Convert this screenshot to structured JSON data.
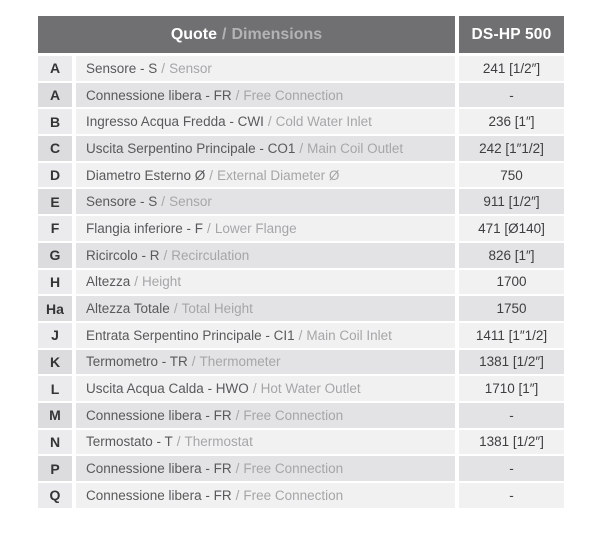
{
  "header": {
    "title_strong": "Quote",
    "title_dim": "Dimensions",
    "model": "DS-HP 500"
  },
  "separator": "/",
  "colors": {
    "header_bg": "#707072",
    "row_light": "#f1f1f2",
    "row_dark": "#e3e3e5",
    "text_dark": "#59595b",
    "text_dim": "#a6a6a8"
  },
  "rows": [
    {
      "letter": "A",
      "label_it": "Sensore - S",
      "label_en": "Sensor",
      "value": "241 [1/2″]"
    },
    {
      "letter": "A",
      "label_it": "Connessione libera - FR",
      "label_en": "Free Connection",
      "value": "-"
    },
    {
      "letter": "B",
      "label_it": "Ingresso Acqua Fredda - CWI",
      "label_en": "Cold Water Inlet",
      "value": "236 [1″]"
    },
    {
      "letter": "C",
      "label_it": "Uscita Serpentino Principale - CO1",
      "label_en": "Main Coil Outlet",
      "value": "242 [1″1/2]"
    },
    {
      "letter": "D",
      "label_it": "Diametro Esterno Ø",
      "label_en": "External Diameter Ø",
      "value": "750"
    },
    {
      "letter": "E",
      "label_it": "Sensore - S",
      "label_en": "Sensor",
      "value": "911 [1/2″]"
    },
    {
      "letter": "F",
      "label_it": "Flangia inferiore - F",
      "label_en": "Lower Flange",
      "value": "471 [Ø140]"
    },
    {
      "letter": "G",
      "label_it": "Ricircolo - R",
      "label_en": "Recirculation",
      "value": "826 [1″]"
    },
    {
      "letter": "H",
      "label_it": "Altezza",
      "label_en": "Height",
      "value": "1700"
    },
    {
      "letter": "Ha",
      "label_it": "Altezza Totale",
      "label_en": "Total Height",
      "value": "1750"
    },
    {
      "letter": "J",
      "label_it": "Entrata Serpentino Principale - CI1",
      "label_en": "Main Coil Inlet",
      "value": "1411 [1″1/2]"
    },
    {
      "letter": "K",
      "label_it": "Termometro - TR",
      "label_en": "Thermometer",
      "value": "1381 [1/2″]"
    },
    {
      "letter": "L",
      "label_it": "Uscita Acqua Calda - HWO",
      "label_en": "Hot Water Outlet",
      "value": "1710 [1″]"
    },
    {
      "letter": "M",
      "label_it": "Connessione libera - FR",
      "label_en": "Free Connection",
      "value": "-"
    },
    {
      "letter": "N",
      "label_it": "Termostato - T",
      "label_en": "Thermostat",
      "value": "1381 [1/2″]"
    },
    {
      "letter": "P",
      "label_it": "Connessione libera - FR",
      "label_en": "Free Connection",
      "value": "-"
    },
    {
      "letter": "Q",
      "label_it": "Connessione libera - FR",
      "label_en": "Free Connection",
      "value": "-"
    }
  ]
}
